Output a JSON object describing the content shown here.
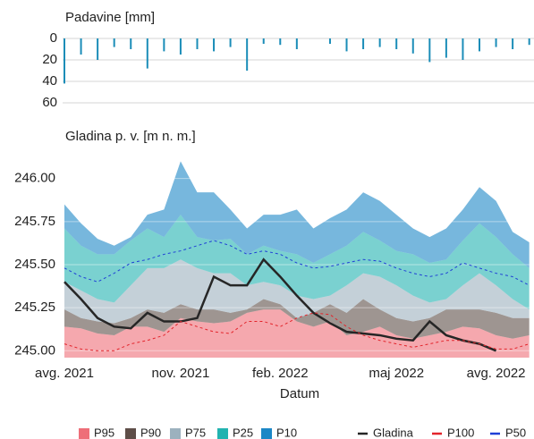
{
  "chart_data": [
    {
      "type": "bar",
      "y_label": "Padavine [mm]",
      "inverted": true,
      "color": "#1b8db8",
      "categories": [
        null,
        null,
        null,
        null,
        null,
        null,
        null,
        null,
        null,
        null,
        null,
        null,
        null,
        null,
        null,
        null,
        null,
        null,
        null,
        null,
        null,
        null,
        null,
        null,
        null,
        null,
        null,
        null,
        null
      ],
      "values": [
        42,
        15,
        20,
        8,
        10,
        28,
        12,
        15,
        10,
        12,
        8,
        30,
        5,
        6,
        10,
        0,
        5,
        12,
        10,
        8,
        10,
        14,
        22,
        18,
        20,
        12,
        8,
        10,
        6
      ],
      "ylim": [
        0,
        60
      ],
      "yticks": [
        0,
        20,
        40,
        60
      ],
      "grid": true
    },
    {
      "type": "band",
      "y_label": "Gladina p. v. [m n. m.]",
      "x_label": "Datum",
      "categories": [
        "avg. 2021",
        null,
        null,
        null,
        null,
        null,
        null,
        "nov. 2021",
        null,
        null,
        null,
        null,
        null,
        "feb. 2022",
        null,
        null,
        null,
        null,
        null,
        null,
        "maj 2022",
        null,
        null,
        null,
        null,
        null,
        "avg. 2022",
        null,
        null
      ],
      "ylim": [
        244.96,
        246.18
      ],
      "yticks": [
        {
          "value": 245,
          "label": "245.00"
        },
        {
          "value": 245.25,
          "label": "245.25"
        },
        {
          "value": 245.5,
          "label": "245.50"
        },
        {
          "value": 245.75,
          "label": "245.75"
        },
        {
          "value": 246,
          "label": "246.00"
        }
      ],
      "grid": true,
      "series": [
        {
          "name": "P95",
          "kind": "area",
          "color": "#ee6e78",
          "values": [
            245.14,
            245.13,
            245.1,
            245.09,
            245.14,
            245.14,
            245.11,
            245.19,
            245.17,
            245.16,
            245.17,
            245.22,
            245.24,
            245.24,
            245.17,
            245.14,
            245.17,
            245.09,
            245.11,
            245.14,
            245.09,
            245.07,
            245.09,
            245.11,
            245.14,
            245.13,
            245.09,
            245.07,
            245.09
          ]
        },
        {
          "name": "P90",
          "kind": "area",
          "color": "#5e4e48",
          "values": [
            245.24,
            245.19,
            245.17,
            245.16,
            245.19,
            245.24,
            245.22,
            245.27,
            245.24,
            245.24,
            245.22,
            245.24,
            245.3,
            245.27,
            245.19,
            245.22,
            245.27,
            245.22,
            245.3,
            245.24,
            245.19,
            245.17,
            245.19,
            245.24,
            245.24,
            245.24,
            245.22,
            245.19,
            245.19
          ]
        },
        {
          "name": "P75",
          "kind": "area",
          "color": "#9cb1be",
          "values": [
            245.4,
            245.35,
            245.3,
            245.28,
            245.38,
            245.48,
            245.48,
            245.53,
            245.48,
            245.45,
            245.45,
            245.38,
            245.4,
            245.38,
            245.32,
            245.3,
            245.32,
            245.38,
            245.45,
            245.43,
            245.38,
            245.32,
            245.28,
            245.3,
            245.38,
            245.45,
            245.38,
            245.3,
            245.24
          ]
        },
        {
          "name": "P25",
          "kind": "area",
          "color": "#22b3b0",
          "values": [
            245.71,
            245.61,
            245.56,
            245.56,
            245.64,
            245.71,
            245.66,
            245.79,
            245.66,
            245.64,
            245.65,
            245.56,
            245.61,
            245.58,
            245.56,
            245.51,
            245.56,
            245.61,
            245.69,
            245.64,
            245.58,
            245.56,
            245.51,
            245.53,
            245.64,
            245.74,
            245.66,
            245.56,
            245.48
          ]
        },
        {
          "name": "P10",
          "kind": "area",
          "color": "#1c87c6",
          "values": [
            245.85,
            245.74,
            245.65,
            245.61,
            245.66,
            245.79,
            245.82,
            246.1,
            245.92,
            245.92,
            245.82,
            245.71,
            245.79,
            245.79,
            245.82,
            245.71,
            245.77,
            245.82,
            245.92,
            245.87,
            245.79,
            245.71,
            245.66,
            245.71,
            245.82,
            245.95,
            245.87,
            245.69,
            245.63
          ]
        },
        {
          "name": "Gladina",
          "kind": "line",
          "color": "#262626",
          "values": [
            245.4,
            245.3,
            245.19,
            245.14,
            245.13,
            245.22,
            245.17,
            245.17,
            245.19,
            245.43,
            245.38,
            245.38,
            245.53,
            245.43,
            245.32,
            245.22,
            245.16,
            245.11,
            245.1,
            245.09,
            245.07,
            245.06,
            245.17,
            245.09,
            245.06,
            245.04,
            245.0,
            null,
            null
          ]
        },
        {
          "name": "P100",
          "kind": "line",
          "dashed": true,
          "color": "#e3242b",
          "values": [
            245.04,
            245.01,
            245.0,
            245.0,
            245.04,
            245.06,
            245.09,
            245.17,
            245.14,
            245.11,
            245.1,
            245.17,
            245.17,
            245.14,
            245.19,
            245.22,
            245.21,
            245.14,
            245.09,
            245.06,
            245.04,
            245.02,
            245.04,
            245.06,
            245.06,
            245.04,
            245.01,
            245.01,
            245.04
          ]
        },
        {
          "name": "P50",
          "kind": "line",
          "dashed": true,
          "color": "#1f3fd6",
          "values": [
            245.48,
            245.43,
            245.4,
            245.45,
            245.51,
            245.53,
            245.56,
            245.58,
            245.61,
            245.64,
            245.61,
            245.56,
            245.58,
            245.56,
            245.51,
            245.48,
            245.49,
            245.51,
            245.53,
            245.52,
            245.48,
            245.45,
            245.43,
            245.45,
            245.51,
            245.48,
            245.45,
            245.43,
            245.38
          ]
        }
      ]
    }
  ]
}
